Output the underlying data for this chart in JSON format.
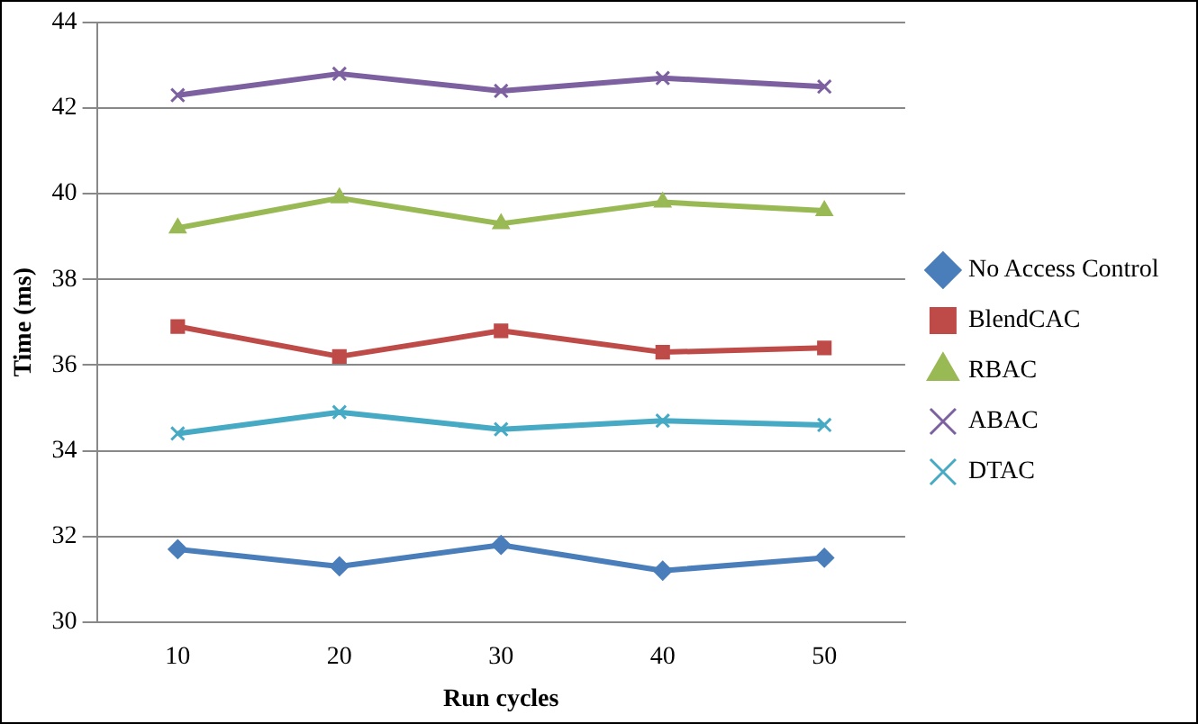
{
  "chart_data": {
    "type": "line",
    "xlabel": "Run cycles",
    "ylabel": "Time (ms)",
    "categories": [
      "10",
      "20",
      "30",
      "40",
      "50"
    ],
    "series": [
      {
        "name": "No Access Control",
        "color": "#4a7ebb",
        "marker": "diamond",
        "values": [
          31.7,
          31.3,
          31.8,
          31.2,
          31.5
        ]
      },
      {
        "name": "BlendCAC",
        "color": "#be4b48",
        "marker": "square",
        "values": [
          36.9,
          36.2,
          36.8,
          36.3,
          36.4
        ]
      },
      {
        "name": "RBAC",
        "color": "#98b954",
        "marker": "triangle",
        "values": [
          39.2,
          39.9,
          39.3,
          39.8,
          39.6
        ]
      },
      {
        "name": "ABAC",
        "color": "#7d60a0",
        "marker": "cross",
        "values": [
          42.3,
          42.8,
          42.4,
          42.7,
          42.5
        ]
      },
      {
        "name": "DTAC",
        "color": "#46aac5",
        "marker": "cross",
        "values": [
          34.4,
          34.9,
          34.5,
          34.7,
          34.6
        ]
      }
    ],
    "ylim": [
      30,
      44
    ],
    "yticks": [
      30,
      32,
      34,
      36,
      38,
      40,
      42,
      44
    ],
    "grid": "y",
    "legend": "right",
    "line_style": "solid"
  }
}
